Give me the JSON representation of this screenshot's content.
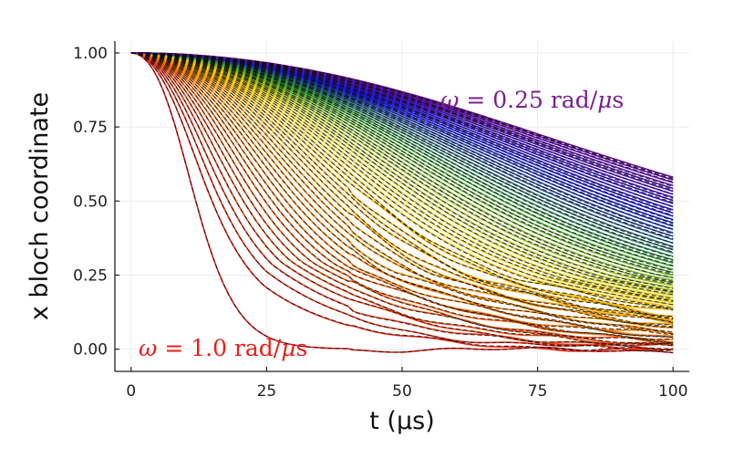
{
  "chart_data": {
    "type": "line",
    "xlabel": "t (μs)",
    "ylabel": "x bloch coordinate",
    "xlim": [
      -3,
      103
    ],
    "ylim": [
      -0.075,
      1.04
    ],
    "xticks": [
      0,
      25,
      50,
      75,
      100
    ],
    "xtick_labels": [
      "0",
      "25",
      "50",
      "75",
      "100"
    ],
    "yticks": [
      0.0,
      0.25,
      0.5,
      0.75,
      1.0
    ],
    "ytick_labels": [
      "0.00",
      "0.25",
      "0.50",
      "0.75",
      "1.00"
    ],
    "grid": true,
    "legend": "none",
    "annotations": [
      {
        "text_symbol": "ω",
        "text_rest": " = 0.25 rad/",
        "text_unit_symbol": "μ",
        "text_unit": "s",
        "color": "#7a1f8f",
        "anchor": "top-right"
      },
      {
        "text_symbol": "ω",
        "text_rest": " = 1.0 rad/",
        "text_unit_symbol": "μ",
        "text_unit": "s",
        "color": "#e8201a",
        "anchor": "bottom-left"
      }
    ],
    "series_family": {
      "description": "Decay curves x(t) for a sweep of omega from 1.0 (red) to 0.25 (violet) rad/us; solid colored = simulation, dashed black = fit",
      "omega_range": [
        0.25,
        1.0
      ],
      "t_range": [
        0,
        100
      ],
      "y_at_t100_range": [
        0.0,
        0.56
      ],
      "colors_by_omega": [
        "#e8201a",
        "#ff8c00",
        "#f0d000",
        "#2e9e2e",
        "#1515e6",
        "#6b0fa0"
      ],
      "fit_style": "dashed-black"
    }
  }
}
